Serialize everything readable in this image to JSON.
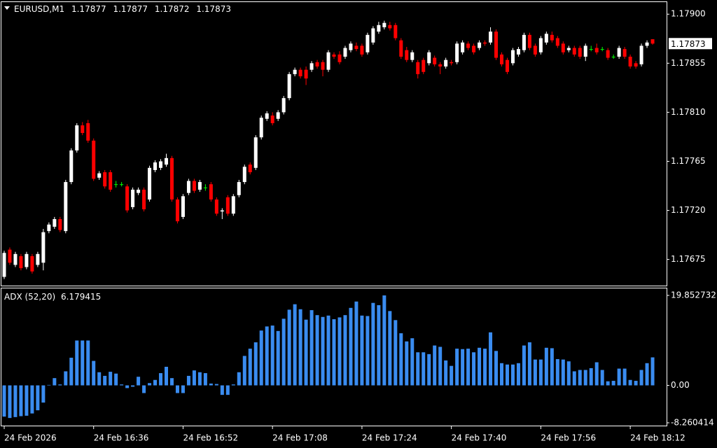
{
  "chart_data": [
    {
      "type": "candlestick",
      "symbol": "EURUSD,M1",
      "up_color": "#ffffff",
      "down_color": "#ff0000",
      "doji_color": "#00ff00",
      "ylim": [
        1.17651,
        1.17913
      ],
      "yticks": [
        {
          "value": 1.179,
          "label": "1.17900"
        },
        {
          "value": 1.17855,
          "label": "1.17855"
        },
        {
          "value": 1.1781,
          "label": "1.17810"
        },
        {
          "value": 1.17765,
          "label": "1.17765"
        },
        {
          "value": 1.1772,
          "label": "1.17720"
        },
        {
          "value": 1.17675,
          "label": "1.17675"
        }
      ],
      "xlim": [
        -0.5,
        118.5
      ],
      "xticks": [
        {
          "value": 0,
          "label": "24 Feb 2026"
        },
        {
          "value": 16,
          "label": "24 Feb 16:36"
        },
        {
          "value": 32,
          "label": "24 Feb 16:52"
        },
        {
          "value": 48,
          "label": "24 Feb 17:08"
        },
        {
          "value": 64,
          "label": "24 Feb 17:24"
        },
        {
          "value": 80,
          "label": "24 Feb 17:40"
        },
        {
          "value": 96,
          "label": "24 Feb 17:56"
        },
        {
          "value": 112,
          "label": "24 Feb 18:12"
        }
      ],
      "ohlc": [
        [
          1.17659,
          1.17683,
          1.17657,
          1.17681
        ],
        [
          1.17684,
          1.17686,
          1.1767,
          1.17672
        ],
        [
          1.1767,
          1.17682,
          1.17668,
          1.1768
        ],
        [
          1.17678,
          1.1768,
          1.17665,
          1.17667
        ],
        [
          1.17668,
          1.17682,
          1.17666,
          1.1768
        ],
        [
          1.17678,
          1.1768,
          1.17662,
          1.17664
        ],
        [
          1.1767,
          1.17682,
          1.17668,
          1.1768
        ],
        [
          1.17672,
          1.17703,
          1.17665,
          1.177
        ],
        [
          1.17701,
          1.17709,
          1.17699,
          1.17707
        ],
        [
          1.17705,
          1.17714,
          1.17703,
          1.17712
        ],
        [
          1.17712,
          1.17714,
          1.177,
          1.17702
        ],
        [
          1.17701,
          1.17748,
          1.17699,
          1.17746
        ],
        [
          1.17746,
          1.17777,
          1.17744,
          1.17775
        ],
        [
          1.17775,
          1.178,
          1.17773,
          1.17798
        ],
        [
          1.17798,
          1.17801,
          1.17789,
          1.17791
        ],
        [
          1.178,
          1.17803,
          1.17782,
          1.17784
        ],
        [
          1.17784,
          1.17786,
          1.17747,
          1.17749
        ],
        [
          1.1775,
          1.17756,
          1.17748,
          1.17754
        ],
        [
          1.17755,
          1.17757,
          1.1774,
          1.17742
        ],
        [
          1.17755,
          1.17757,
          1.17737,
          1.17739
        ],
        [
          1.17744,
          1.17747,
          1.17741,
          1.17744
        ],
        [
          1.17744,
          1.17746,
          1.17742,
          1.17744
        ],
        [
          1.17742,
          1.17744,
          1.17718,
          1.1772
        ],
        [
          1.17723,
          1.17741,
          1.17721,
          1.17739
        ],
        [
          1.17736,
          1.17741,
          1.17734,
          1.17739
        ],
        [
          1.17739,
          1.17741,
          1.17719,
          1.17721
        ],
        [
          1.1773,
          1.17761,
          1.17728,
          1.17759
        ],
        [
          1.17757,
          1.17766,
          1.17755,
          1.17764
        ],
        [
          1.17759,
          1.17767,
          1.17757,
          1.17765
        ],
        [
          1.17762,
          1.17772,
          1.1776,
          1.17768
        ],
        [
          1.17768,
          1.1777,
          1.17728,
          1.1773
        ],
        [
          1.1773,
          1.17732,
          1.17708,
          1.1771
        ],
        [
          1.17714,
          1.17735,
          1.17712,
          1.17733
        ],
        [
          1.17736,
          1.17749,
          1.17734,
          1.17747
        ],
        [
          1.17747,
          1.17749,
          1.17736,
          1.17738
        ],
        [
          1.17739,
          1.17748,
          1.17737,
          1.17746
        ],
        [
          1.17741,
          1.17744,
          1.17738,
          1.17741
        ],
        [
          1.17744,
          1.17746,
          1.17728,
          1.1773
        ],
        [
          1.1773,
          1.17732,
          1.17715,
          1.17717
        ],
        [
          1.17719,
          1.17722,
          1.17712,
          1.1772
        ],
        [
          1.17732,
          1.17734,
          1.17715,
          1.17717
        ],
        [
          1.17717,
          1.17735,
          1.17715,
          1.17733
        ],
        [
          1.17734,
          1.17748,
          1.17732,
          1.17746
        ],
        [
          1.17746,
          1.17762,
          1.17744,
          1.1776
        ],
        [
          1.17762,
          1.17764,
          1.17753,
          1.17755
        ],
        [
          1.17759,
          1.17789,
          1.17757,
          1.17787
        ],
        [
          1.17787,
          1.17807,
          1.17785,
          1.17805
        ],
        [
          1.17804,
          1.17811,
          1.17802,
          1.17809
        ],
        [
          1.17807,
          1.1781,
          1.17798,
          1.178
        ],
        [
          1.17804,
          1.17812,
          1.17802,
          1.1781
        ],
        [
          1.1781,
          1.17825,
          1.17808,
          1.17823
        ],
        [
          1.17823,
          1.17847,
          1.17821,
          1.17845
        ],
        [
          1.17845,
          1.17851,
          1.17843,
          1.17849
        ],
        [
          1.17849,
          1.17851,
          1.17841,
          1.17843
        ],
        [
          1.17849,
          1.17852,
          1.17835,
          1.17841
        ],
        [
          1.17849,
          1.17857,
          1.17847,
          1.17855
        ],
        [
          1.17856,
          1.17858,
          1.1785,
          1.17852
        ],
        [
          1.17856,
          1.17858,
          1.17843,
          1.17849
        ],
        [
          1.17849,
          1.17867,
          1.17847,
          1.17865
        ],
        [
          1.17863,
          1.17865,
          1.17859,
          1.17861
        ],
        [
          1.17863,
          1.17866,
          1.17854,
          1.17856
        ],
        [
          1.17861,
          1.17871,
          1.17859,
          1.17869
        ],
        [
          1.17867,
          1.17875,
          1.17865,
          1.17873
        ],
        [
          1.17871,
          1.17874,
          1.17866,
          1.17868
        ],
        [
          1.17871,
          1.17873,
          1.17861,
          1.17863
        ],
        [
          1.17865,
          1.17883,
          1.17863,
          1.17881
        ],
        [
          1.17874,
          1.17889,
          1.17872,
          1.17887
        ],
        [
          1.17884,
          1.17893,
          1.17882,
          1.1789
        ],
        [
          1.17888,
          1.17894,
          1.17886,
          1.17892
        ],
        [
          1.1789,
          1.17893,
          1.17885,
          1.17887
        ],
        [
          1.1789,
          1.17892,
          1.17876,
          1.17878
        ],
        [
          1.17876,
          1.17878,
          1.17859,
          1.17861
        ],
        [
          1.17867,
          1.1787,
          1.17856,
          1.17858
        ],
        [
          1.17858,
          1.17867,
          1.17856,
          1.17865
        ],
        [
          1.17856,
          1.17858,
          1.17841,
          1.17845
        ],
        [
          1.17858,
          1.1786,
          1.17845,
          1.17847
        ],
        [
          1.17855,
          1.17867,
          1.17853,
          1.17865
        ],
        [
          1.1786,
          1.17862,
          1.17852,
          1.17854
        ],
        [
          1.17854,
          1.17856,
          1.17845,
          1.17852
        ],
        [
          1.17852,
          1.1786,
          1.1785,
          1.17858
        ],
        [
          1.17856,
          1.17858,
          1.17853,
          1.17855
        ],
        [
          1.17856,
          1.17875,
          1.17854,
          1.17873
        ],
        [
          1.17865,
          1.17876,
          1.17863,
          1.17874
        ],
        [
          1.17873,
          1.17875,
          1.17867,
          1.17869
        ],
        [
          1.17871,
          1.17873,
          1.17863,
          1.17865
        ],
        [
          1.17869,
          1.17876,
          1.17867,
          1.17874
        ],
        [
          1.17874,
          1.17876,
          1.17871,
          1.17873
        ],
        [
          1.17874,
          1.17888,
          1.17872,
          1.17884
        ],
        [
          1.17884,
          1.17886,
          1.17858,
          1.1786
        ],
        [
          1.17863,
          1.17865,
          1.17852,
          1.17854
        ],
        [
          1.17858,
          1.1786,
          1.17845,
          1.17847
        ],
        [
          1.17855,
          1.17869,
          1.17853,
          1.17867
        ],
        [
          1.17863,
          1.1787,
          1.17861,
          1.17868
        ],
        [
          1.17867,
          1.17883,
          1.17865,
          1.17881
        ],
        [
          1.17881,
          1.17883,
          1.17867,
          1.17869
        ],
        [
          1.17871,
          1.17873,
          1.17861,
          1.17863
        ],
        [
          1.17865,
          1.1788,
          1.17863,
          1.17878
        ],
        [
          1.17874,
          1.17884,
          1.17872,
          1.17882
        ],
        [
          1.17881,
          1.17884,
          1.17874,
          1.17876
        ],
        [
          1.17878,
          1.1788,
          1.17869,
          1.17871
        ],
        [
          1.17873,
          1.17875,
          1.17863,
          1.17865
        ],
        [
          1.17867,
          1.17871,
          1.17865,
          1.17869
        ],
        [
          1.17869,
          1.17871,
          1.17861,
          1.17863
        ],
        [
          1.17869,
          1.17871,
          1.17859,
          1.17861
        ],
        [
          1.17861,
          1.17873,
          1.17857,
          1.17871
        ],
        [
          1.17868,
          1.17871,
          1.17866,
          1.17868
        ],
        [
          1.17869,
          1.17873,
          1.17863,
          1.17865
        ],
        [
          1.17868,
          1.1787,
          1.17866,
          1.17868
        ],
        [
          1.17867,
          1.17869,
          1.17858,
          1.1786
        ],
        [
          1.17861,
          1.17863,
          1.17859,
          1.17861
        ],
        [
          1.17861,
          1.17871,
          1.17859,
          1.17869
        ],
        [
          1.17868,
          1.1787,
          1.17859,
          1.17861
        ],
        [
          1.17861,
          1.17863,
          1.1785,
          1.17852
        ],
        [
          1.17855,
          1.17857,
          1.1785,
          1.17852
        ],
        [
          1.17854,
          1.17873,
          1.17852,
          1.17871
        ],
        [
          1.17871,
          1.17876,
          1.17869,
          1.17874
        ],
        [
          1.17877,
          1.17877,
          1.17872,
          1.17873
        ]
      ]
    },
    {
      "type": "bar",
      "title": "ADX (52,20)",
      "color": "#3a8cf0",
      "ylim": [
        -8.260414,
        19.852732
      ],
      "yticks": [
        19.852732,
        {
          "value": 0,
          "label": "0.00"
        },
        -8.260414
      ],
      "values": [
        -6.9,
        -7.2,
        -7.0,
        -6.8,
        -6.7,
        -6.2,
        -5.5,
        -3.8,
        0.1,
        1.6,
        0.2,
        3.1,
        6.1,
        9.9,
        9.9,
        9.9,
        5.4,
        2.9,
        2.1,
        3.0,
        2.6,
        0.2,
        -0.6,
        -0.3,
        1.9,
        -1.7,
        0.5,
        1.2,
        2.7,
        4.1,
        1.6,
        -1.7,
        -1.7,
        2.1,
        3.3,
        2.9,
        2.7,
        0.4,
        0.3,
        -2.1,
        -2.1,
        0.2,
        2.9,
        6.5,
        8.1,
        9.5,
        12.1,
        13.0,
        13.2,
        12.0,
        14.7,
        16.7,
        17.9,
        16.8,
        14.5,
        16.6,
        15.5,
        15.1,
        15.4,
        14.6,
        15.0,
        15.5,
        17.1,
        18.5,
        15.4,
        15.3,
        18.2,
        17.7,
        19.85,
        16.4,
        14.4,
        11.5,
        9.7,
        10.4,
        7.3,
        7.3,
        6.9,
        8.8,
        8.5,
        5.5,
        4.3,
        8.1,
        8.0,
        8.1,
        7.3,
        8.3,
        8.1,
        11.7,
        7.6,
        4.9,
        4.6,
        4.6,
        4.9,
        8.8,
        9.5,
        5.7,
        5.7,
        8.3,
        8.2,
        5.8,
        5.7,
        5.3,
        3.1,
        3.4,
        3.4,
        3.8,
        5.1,
        3.4,
        0.9,
        1.0,
        3.7,
        3.7,
        1.2,
        1.0,
        3.4,
        4.9,
        6.179415
      ]
    }
  ]
}
